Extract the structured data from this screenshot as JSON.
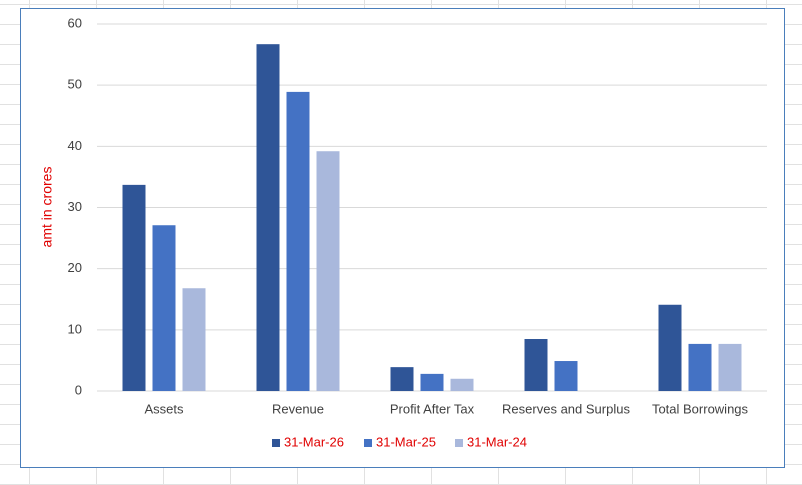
{
  "chart_data": {
    "type": "bar",
    "y_label": "amt in crores",
    "categories": [
      "Assets",
      "Revenue",
      "Profit After Tax",
      "Reserves and Surplus",
      "Total Borrowings"
    ],
    "series": [
      {
        "name": "31-Mar-26",
        "color": "#2f5597",
        "values": [
          33.7,
          56.7,
          3.9,
          8.5,
          14.1
        ]
      },
      {
        "name": "31-Mar-25",
        "color": "#4472c4",
        "values": [
          27.1,
          48.9,
          2.8,
          4.9,
          7.7
        ]
      },
      {
        "name": "31-Mar-24",
        "color": "#a9b8dc",
        "values": [
          16.8,
          39.2,
          2.0,
          null,
          7.7
        ]
      }
    ],
    "ylim": [
      0,
      60
    ],
    "yticks": [
      0,
      10,
      20,
      30,
      40,
      50,
      60
    ],
    "grid": true,
    "legend": "bottom",
    "legend_color": "#e00000",
    "y_label_color": "#e00000"
  }
}
